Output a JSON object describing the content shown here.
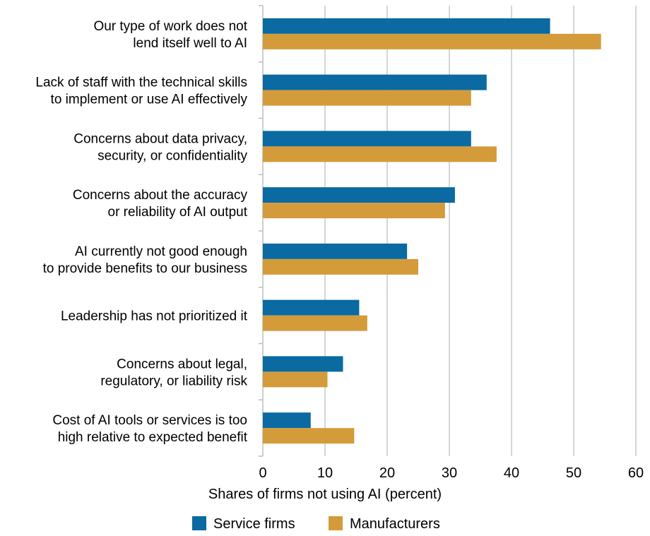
{
  "chart_data": {
    "type": "bar",
    "orientation": "horizontal",
    "categories": [
      [
        "Our type of work does not",
        "lend itself well to AI"
      ],
      [
        "Lack of staff with the technical skills",
        "to implement or use AI effectively"
      ],
      [
        "Concerns about data privacy,",
        "security, or confidentiality"
      ],
      [
        "Concerns about the accuracy",
        "or reliability of AI output"
      ],
      [
        "AI currently not good enough",
        "to provide benefits to our business"
      ],
      [
        "Leadership has not prioritized it"
      ],
      [
        "Concerns about legal,",
        "regulatory, or liability risk"
      ],
      [
        "Cost of AI tools or services is too",
        "high relative to expected benefit"
      ]
    ],
    "series": [
      {
        "name": "Service firms",
        "color": "#0a6aa1",
        "values": [
          46.2,
          36.0,
          33.5,
          30.9,
          23.2,
          15.5,
          12.9,
          7.7
        ]
      },
      {
        "name": "Manufacturers",
        "color": "#d49b3b",
        "values": [
          54.4,
          33.5,
          37.6,
          29.3,
          25.0,
          16.8,
          10.4,
          14.7
        ]
      }
    ],
    "xlabel": "Shares of firms not using AI (percent)",
    "xlim": [
      0,
      60
    ],
    "xticks": [
      0,
      10,
      20,
      30,
      40,
      50,
      60
    ],
    "grid": true,
    "legend_position": "bottom-center"
  }
}
